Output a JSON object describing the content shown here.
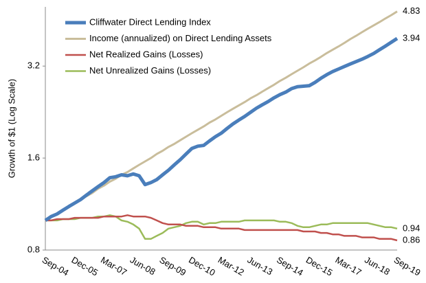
{
  "chart_data": {
    "type": "line",
    "y_label": "Growth of $1 (Log Scale)",
    "yscale": "log",
    "ylim": [
      0.8,
      5.0
    ],
    "yticks": [
      0.8,
      1.6,
      3.2
    ],
    "grid": false,
    "legend": "top-left",
    "categories": [
      "Sep-04",
      null,
      null,
      null,
      null,
      "Dec-05",
      null,
      null,
      null,
      null,
      "Mar-07",
      null,
      null,
      null,
      null,
      "Jun-08",
      null,
      null,
      null,
      null,
      "Sep-09",
      null,
      null,
      null,
      null,
      "Dec-10",
      null,
      null,
      null,
      null,
      "Mar-12",
      null,
      null,
      null,
      null,
      "Jun-13",
      null,
      null,
      null,
      null,
      "Sep-14",
      null,
      null,
      null,
      null,
      "Dec-15",
      null,
      null,
      null,
      null,
      "Mar-17",
      null,
      null,
      null,
      null,
      "Jun-18",
      null,
      null,
      null,
      null,
      "Sep-19"
    ],
    "series": [
      {
        "name": "Cliffwater Direct Lending Index",
        "color": "#4a7ebb",
        "width": 5,
        "values": [
          1.0,
          1.03,
          1.05,
          1.08,
          1.11,
          1.14,
          1.17,
          1.21,
          1.25,
          1.29,
          1.33,
          1.38,
          1.39,
          1.41,
          1.4,
          1.42,
          1.4,
          1.31,
          1.33,
          1.36,
          1.41,
          1.46,
          1.52,
          1.58,
          1.65,
          1.72,
          1.75,
          1.76,
          1.82,
          1.88,
          1.93,
          2.0,
          2.07,
          2.13,
          2.19,
          2.26,
          2.33,
          2.39,
          2.45,
          2.52,
          2.58,
          2.63,
          2.7,
          2.74,
          2.75,
          2.76,
          2.83,
          2.92,
          3.0,
          3.07,
          3.13,
          3.19,
          3.25,
          3.31,
          3.37,
          3.44,
          3.52,
          3.62,
          3.72,
          3.83,
          3.94
        ]
      },
      {
        "name": "Income (annualized) on Direct Lending Assets",
        "color": "#c9bd9b",
        "width": 3,
        "values": [
          1.0,
          1.03,
          1.05,
          1.08,
          1.11,
          1.14,
          1.17,
          1.2,
          1.23,
          1.27,
          1.3,
          1.34,
          1.37,
          1.41,
          1.44,
          1.48,
          1.52,
          1.56,
          1.6,
          1.65,
          1.69,
          1.74,
          1.78,
          1.83,
          1.88,
          1.93,
          1.98,
          2.03,
          2.09,
          2.14,
          2.2,
          2.26,
          2.32,
          2.38,
          2.44,
          2.51,
          2.57,
          2.64,
          2.71,
          2.78,
          2.86,
          2.93,
          3.01,
          3.09,
          3.17,
          3.26,
          3.34,
          3.43,
          3.53,
          3.62,
          3.71,
          3.81,
          3.92,
          4.02,
          4.13,
          4.24,
          4.35,
          4.46,
          4.58,
          4.7,
          4.83
        ]
      },
      {
        "name": "Net Realized Gains (Losses)",
        "color": "#c0504d",
        "width": 2.5,
        "values": [
          1.0,
          1.0,
          1.01,
          1.01,
          1.01,
          1.02,
          1.02,
          1.02,
          1.02,
          1.02,
          1.03,
          1.03,
          1.03,
          1.03,
          1.04,
          1.03,
          1.03,
          1.03,
          1.02,
          1.0,
          0.98,
          0.97,
          0.97,
          0.97,
          0.96,
          0.96,
          0.96,
          0.95,
          0.95,
          0.95,
          0.94,
          0.94,
          0.94,
          0.94,
          0.93,
          0.93,
          0.93,
          0.93,
          0.93,
          0.93,
          0.93,
          0.93,
          0.93,
          0.93,
          0.92,
          0.92,
          0.92,
          0.91,
          0.91,
          0.9,
          0.9,
          0.89,
          0.89,
          0.89,
          0.88,
          0.88,
          0.88,
          0.87,
          0.87,
          0.87,
          0.86
        ]
      },
      {
        "name": "Net Unrealized Gains (Losses)",
        "color": "#9bbb59",
        "width": 2.5,
        "values": [
          1.0,
          1.0,
          1.0,
          1.01,
          1.01,
          1.01,
          1.02,
          1.02,
          1.02,
          1.03,
          1.03,
          1.04,
          1.03,
          1.0,
          0.99,
          0.97,
          0.94,
          0.87,
          0.87,
          0.89,
          0.91,
          0.94,
          0.95,
          0.96,
          0.98,
          0.99,
          0.99,
          0.97,
          0.98,
          0.98,
          0.99,
          0.99,
          0.99,
          0.99,
          1.0,
          1.0,
          1.0,
          1.0,
          1.0,
          1.0,
          0.99,
          0.99,
          0.98,
          0.96,
          0.95,
          0.95,
          0.96,
          0.97,
          0.97,
          0.98,
          0.98,
          0.98,
          0.98,
          0.98,
          0.98,
          0.98,
          0.97,
          0.96,
          0.95,
          0.95,
          0.94
        ]
      }
    ]
  }
}
